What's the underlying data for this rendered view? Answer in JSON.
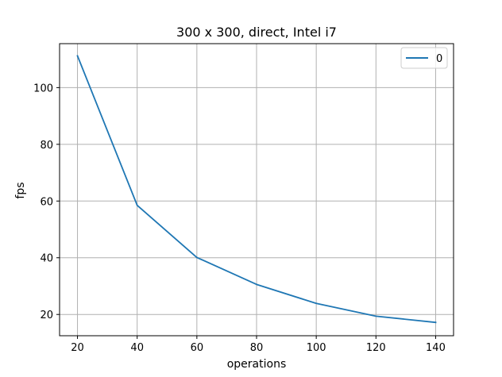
{
  "chart_data": {
    "type": "line",
    "title": "300 x 300, direct,  Intel i7",
    "xlabel": "operations",
    "ylabel": "fps",
    "x": [
      20,
      40,
      60,
      80,
      100,
      120,
      140
    ],
    "series": [
      {
        "name": "0",
        "values": [
          111.2,
          58.5,
          40.1,
          30.6,
          23.9,
          19.4,
          17.2
        ],
        "color": "#1f77b4"
      }
    ],
    "xlim": [
      14,
      146
    ],
    "ylim": [
      12.5,
      115.5
    ],
    "xticks": [
      20,
      40,
      60,
      80,
      100,
      120,
      140
    ],
    "yticks": [
      20,
      40,
      60,
      80,
      100
    ],
    "xtick_labels": [
      "20",
      "40",
      "60",
      "80",
      "100",
      "120",
      "140"
    ],
    "ytick_labels": [
      "20",
      "40",
      "60",
      "80",
      "100"
    ],
    "grid": true,
    "legend_position": "top-right"
  }
}
